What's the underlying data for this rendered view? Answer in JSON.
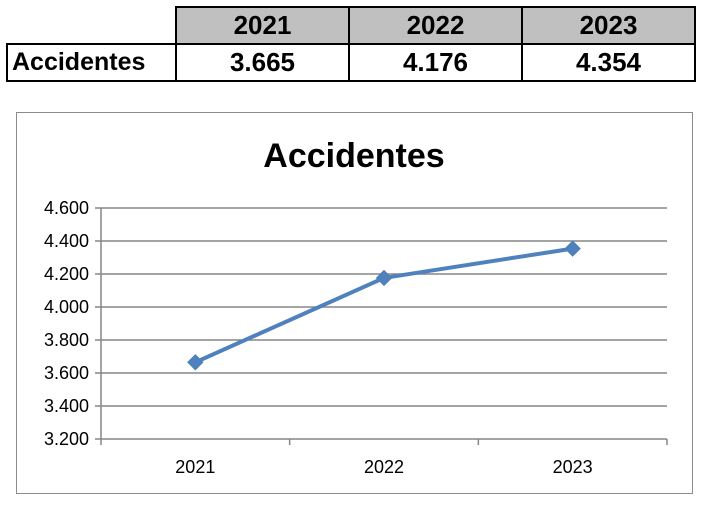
{
  "table": {
    "row_label": "Accidentes",
    "years": [
      "2021",
      "2022",
      "2023"
    ],
    "values": [
      "3.665",
      "4.176",
      "4.354"
    ]
  },
  "chart_data": {
    "type": "line",
    "title": "Accidentes",
    "categories": [
      "2021",
      "2022",
      "2023"
    ],
    "series": [
      {
        "values": [
          3665,
          4176,
          4354
        ],
        "color": "#4f81bd",
        "marker": "diamond"
      }
    ],
    "ylim": [
      3200,
      4600
    ],
    "yticks": [
      3200,
      3400,
      3600,
      3800,
      4000,
      4200,
      4400,
      4600
    ],
    "ytick_labels": [
      "3.200",
      "3.400",
      "3.600",
      "3.800",
      "4.000",
      "4.200",
      "4.400",
      "4.600"
    ],
    "grid": true,
    "legend": "none",
    "gridline_color": "#868686",
    "axis_color": "#868686"
  }
}
